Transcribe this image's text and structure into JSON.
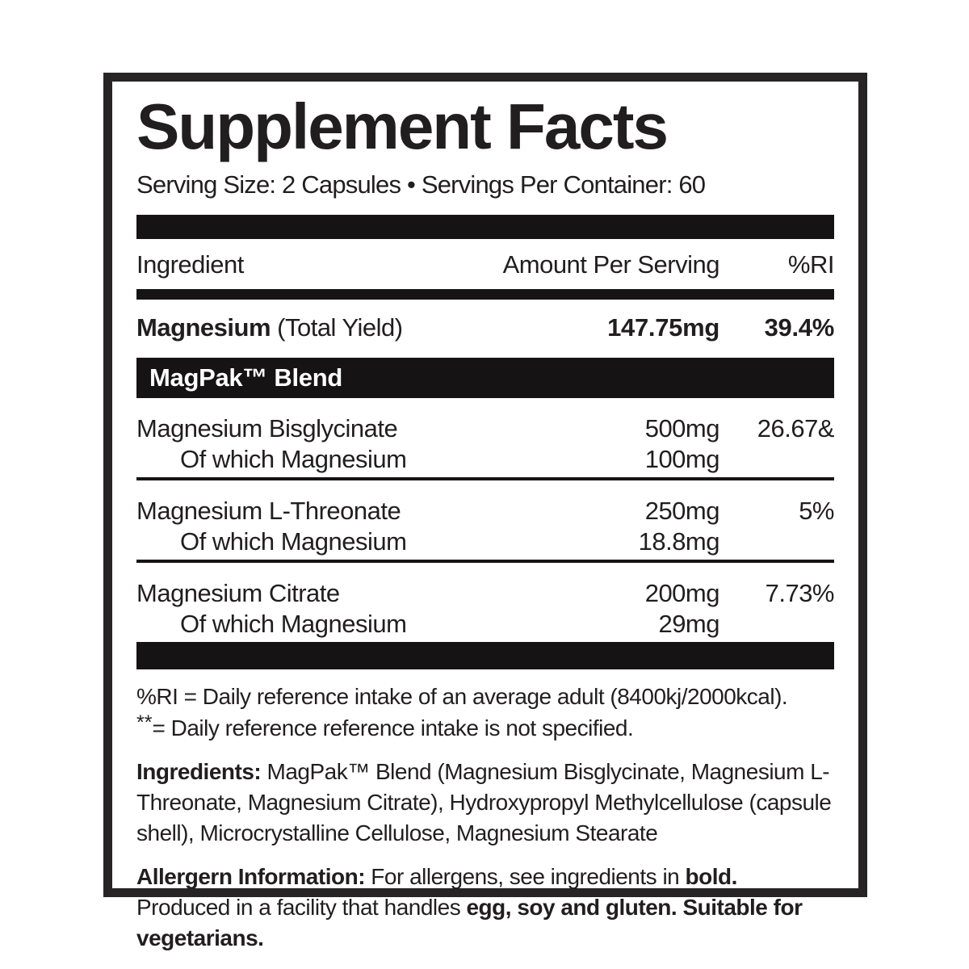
{
  "panel": {
    "title": "Supplement Facts",
    "serving_line": "Serving Size: 2 Capsules • Servings Per Container: 60"
  },
  "table": {
    "headers": {
      "ingredient": "Ingredient",
      "amount": "Amount Per Serving",
      "ri": "%RI"
    },
    "total_row": {
      "name_bold": "Magnesium",
      "name_note": " (Total Yield)",
      "amount": "147.75mg",
      "ri": "39.4%"
    },
    "blend_header": "MagPak™ Blend",
    "rows": [
      {
        "name": "Magnesium Bisglycinate",
        "amount": "500mg",
        "ri": "26.67&",
        "sub_name": "Of which Magnesium",
        "sub_amount": "100mg"
      },
      {
        "name": "Magnesium L-Threonate",
        "amount": "250mg",
        "ri": "5%",
        "sub_name": "Of which Magnesium",
        "sub_amount": "18.8mg"
      },
      {
        "name": "Magnesium Citrate",
        "amount": "200mg",
        "ri": "7.73%",
        "sub_name": "Of which Magnesium",
        "sub_amount": "29mg"
      }
    ]
  },
  "footnotes": {
    "line1": "%RI = Daily reference intake of an average adult (8400kj/2000kcal).",
    "line2_marker": "**",
    "line2_text": "= Daily reference reference intake is not specified."
  },
  "ingredients": {
    "label": "Ingredients:",
    "text": " MagPak™ Blend (Magnesium Bisglycinate, Magnesium L-Threonate, Magnesium Citrate), Hydroxypropyl Methylcellulose (capsule shell), Microcrystalline Cellulose, Magnesium Stearate"
  },
  "allergens": {
    "label": "Allergern Information:",
    "text1": " For allergens, see ingredients in ",
    "bold1": "bold.",
    "text2": " Produced in a facility that handles ",
    "bold2": "egg, soy and gluten. Suitable for vegetarians."
  },
  "colors": {
    "ink": "#211e1f",
    "bar": "#151314",
    "background": "#ffffff"
  }
}
